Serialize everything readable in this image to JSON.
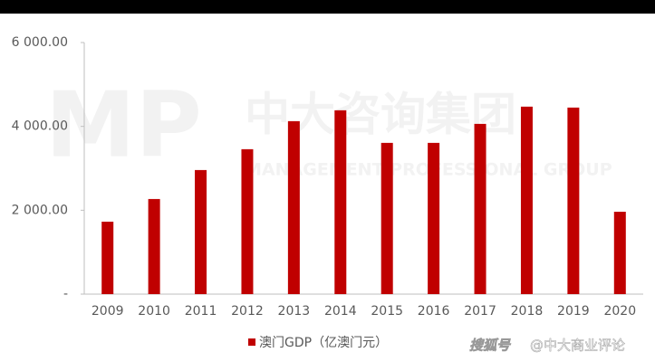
{
  "chart_data": {
    "type": "bar",
    "categories": [
      "2009",
      "2010",
      "2011",
      "2012",
      "2013",
      "2014",
      "2015",
      "2016",
      "2017",
      "2018",
      "2019",
      "2020"
    ],
    "series": [
      {
        "name": "澳门GDP（亿澳门元）",
        "color": "#c00000",
        "values": [
          1728,
          2268,
          2959,
          3456,
          4125,
          4384,
          3607,
          3607,
          4060,
          4471,
          4449,
          1965
        ]
      }
    ],
    "ylim": [
      0,
      6000
    ],
    "yticks": [
      {
        "value": 0,
        "label": "-"
      },
      {
        "value": 2000,
        "label": "2 000.00"
      },
      {
        "value": 4000,
        "label": "4 000.00"
      },
      {
        "value": 6000,
        "label": "6 000.00"
      }
    ],
    "watermark": {
      "logo": "MP",
      "company": "中大咨询集团",
      "company_en": "MANAGEMENT PROFESSIONAL GROUP",
      "platform": "搜狐号",
      "account": "@中大商业评论"
    }
  }
}
